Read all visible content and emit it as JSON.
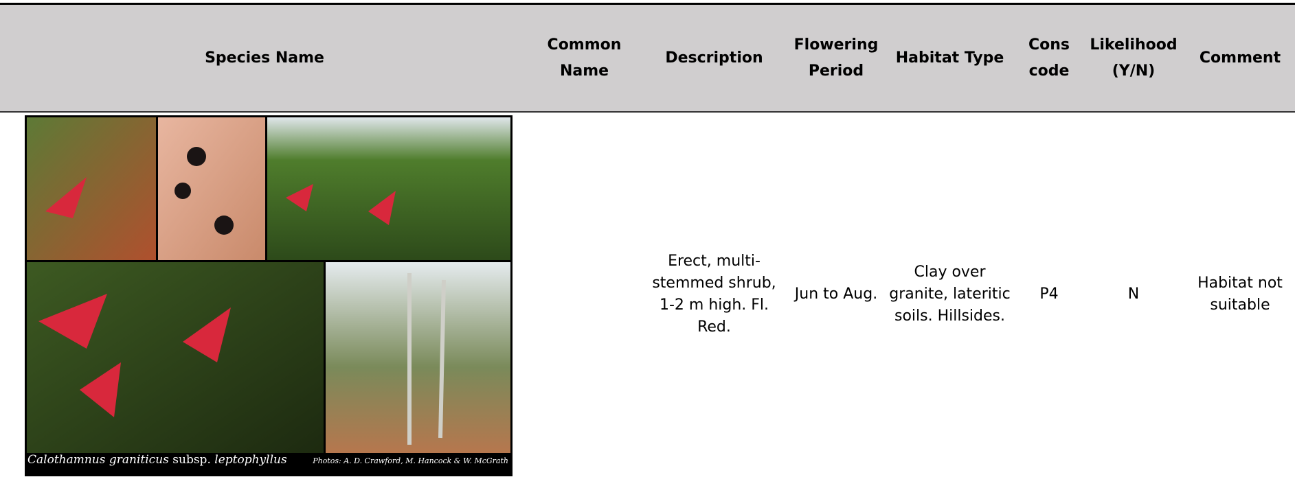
{
  "table": {
    "columns": [
      "Species Name",
      "Common Name",
      "Description",
      "Flowering Period",
      "Habitat Type",
      "Cons code",
      "Likelihood (Y/N)",
      "Comment"
    ],
    "rows": [
      {
        "photo": {
          "genus_species": "Calothamnus graniticus",
          "rank": "subsp.",
          "infraspecific": "leptophyllus",
          "credit": "Photos: A. D. Crawford, M. Hancock & W. McGrath"
        },
        "description": "Erect, multi-stemmed shrub, 1-2 m high. Fl. Red.",
        "flowering_period": "Jun to Aug.",
        "habitat_type": "Clay over granite, lateritic soils. Hillsides.",
        "cons_code": "P4",
        "likelihood": "N",
        "comment": "Habitat not suitable"
      }
    ]
  }
}
